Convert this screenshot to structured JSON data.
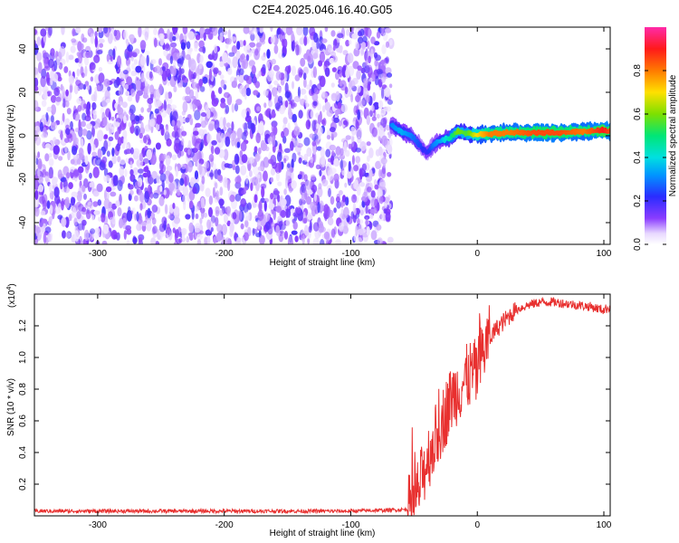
{
  "title": "C2E4.2025.046.16.40.G05",
  "chart_data": [
    {
      "type": "heatmap",
      "xlabel": "Height of straight line (km)",
      "ylabel": "Frequency (Hz)",
      "xlim": [
        -350,
        105
      ],
      "ylim": [
        -50,
        50
      ],
      "xticks": [
        -300,
        -200,
        -100,
        0,
        100
      ],
      "yticks": [
        -40,
        -20,
        0,
        20,
        40
      ],
      "colorbar": {
        "label": "Normalized spectral amplitude",
        "range": [
          0.0,
          1.0
        ],
        "ticks": [
          "0.0",
          "0.2",
          "0.4",
          "0.6",
          "0.8"
        ],
        "tick_values": [
          0.0,
          0.2,
          0.4,
          0.6,
          0.8
        ],
        "colormap": "rainbow (white-purple-blue-cyan-green-yellow-red-magenta)"
      },
      "noise_region_x": [
        -350,
        -68
      ],
      "signal_track": {
        "x": [
          -68,
          -60,
          -52,
          -46,
          -40,
          -34,
          -28,
          -22,
          -15,
          -8,
          0,
          10,
          25,
          45,
          65,
          85,
          100,
          105
        ],
        "frequency": [
          5,
          2,
          0,
          -4,
          -8,
          -4,
          -2,
          -1,
          2,
          1,
          0.5,
          1,
          1.5,
          1.5,
          1.5,
          2,
          2.5,
          2
        ],
        "normalized_amplitude": [
          0.3,
          0.35,
          0.3,
          0.25,
          0.2,
          0.3,
          0.35,
          0.45,
          0.6,
          0.55,
          0.7,
          0.8,
          0.8,
          0.85,
          0.85,
          0.8,
          0.9,
          0.85
        ]
      }
    },
    {
      "type": "line",
      "xlabel": "Height of straight line (km)",
      "ylabel": "SNR (10 * v/v)",
      "scale_note": "(x10",
      "scale_exp": "4",
      "xlim": [
        -350,
        105
      ],
      "ylim": [
        0,
        1.4
      ],
      "xticks": [
        -300,
        -200,
        -100,
        0,
        100
      ],
      "yticks": [
        0.2,
        0.4,
        0.6,
        0.8,
        1.0,
        1.2
      ],
      "ytick_labels": [
        "0.2",
        "0.4",
        "0.6",
        "0.8",
        "1.0",
        "1.2"
      ],
      "color": "#e8302f",
      "series": [
        {
          "x": [
            -350,
            -100,
            -55,
            -50,
            -45,
            -40,
            -35,
            -30,
            -25,
            -20,
            -15,
            -10,
            -5,
            0,
            5,
            10,
            15,
            20,
            25,
            30,
            40,
            50,
            60,
            70,
            80,
            90,
            100,
            105
          ],
          "values": [
            0.03,
            0.03,
            0.04,
            0.08,
            0.2,
            0.35,
            0.45,
            0.55,
            0.65,
            0.75,
            0.8,
            0.85,
            0.9,
            0.9,
            1.05,
            1.12,
            1.18,
            1.22,
            1.26,
            1.3,
            1.33,
            1.35,
            1.35,
            1.34,
            1.33,
            1.32,
            1.3,
            1.32
          ]
        }
      ]
    }
  ]
}
